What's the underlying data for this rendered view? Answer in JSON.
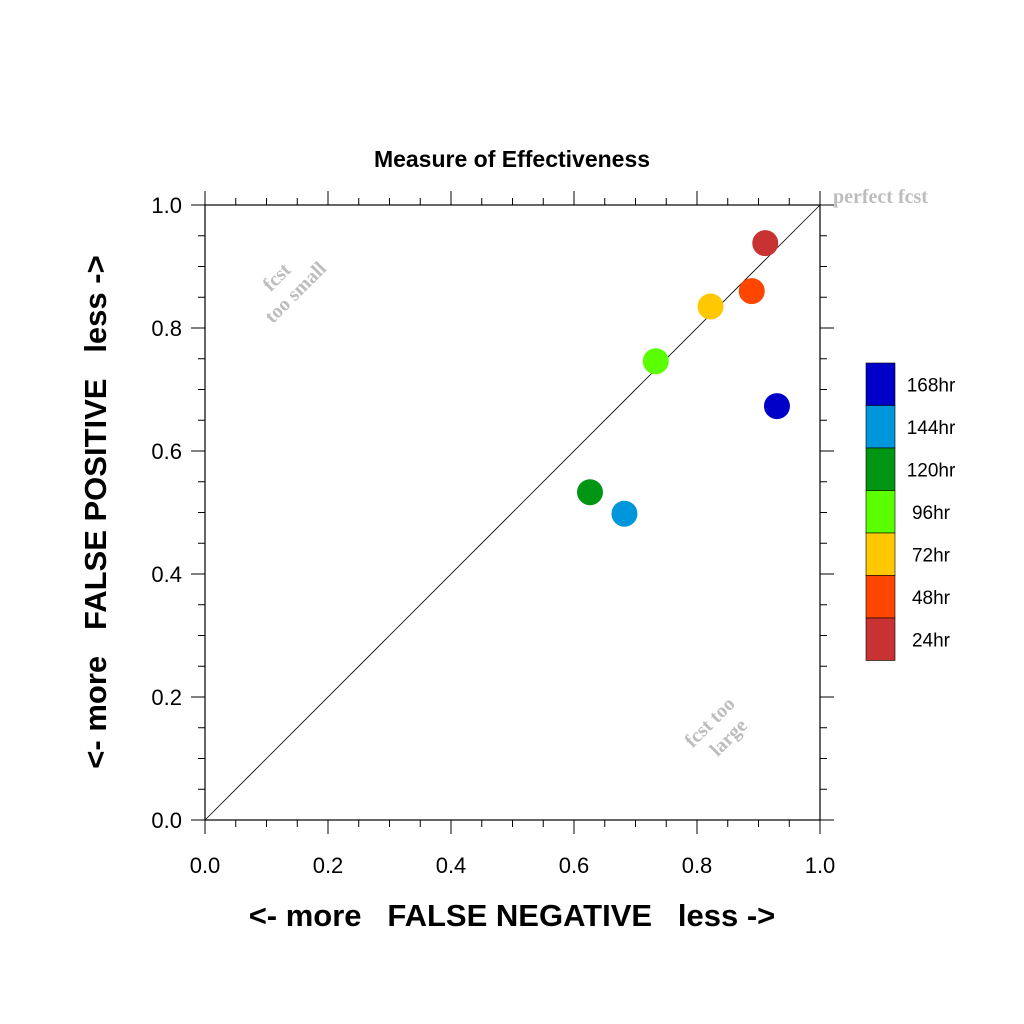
{
  "chart_data": {
    "type": "scatter",
    "title": "Measure of Effectiveness",
    "xlabel": "<- more   FALSE NEGATIVE   less ->",
    "ylabel": "<- more   FALSE POSITIVE   less ->",
    "xlim": [
      0,
      1
    ],
    "ylim": [
      0,
      1
    ],
    "x_ticks": [
      "0.0",
      "0.2",
      "0.4",
      "0.6",
      "0.8",
      "1.0"
    ],
    "y_ticks": [
      "0.0",
      "0.2",
      "0.4",
      "0.6",
      "0.8",
      "1.0"
    ],
    "grid": false,
    "reference_line": "y = x",
    "legend_position": "right",
    "series": [
      {
        "name": "168hr",
        "color": "#0000c8",
        "x": 0.93,
        "y": 0.673
      },
      {
        "name": "144hr",
        "color": "#0096dc",
        "x": 0.682,
        "y": 0.498
      },
      {
        "name": "120hr",
        "color": "#009614",
        "x": 0.626,
        "y": 0.533
      },
      {
        "name": "96hr",
        "color": "#5aff00",
        "x": 0.733,
        "y": 0.746
      },
      {
        "name": "72hr",
        "color": "#ffc800",
        "x": 0.822,
        "y": 0.835
      },
      {
        "name": "48hr",
        "color": "#ff4600",
        "x": 0.889,
        "y": 0.86
      },
      {
        "name": "24hr",
        "color": "#c83232",
        "x": 0.911,
        "y": 0.938
      }
    ],
    "annotations": {
      "perfect": "perfect fcst",
      "small_line1": "fcst",
      "small_line2": "too small",
      "large_line1": "fcst too",
      "large_line2": "large"
    }
  }
}
